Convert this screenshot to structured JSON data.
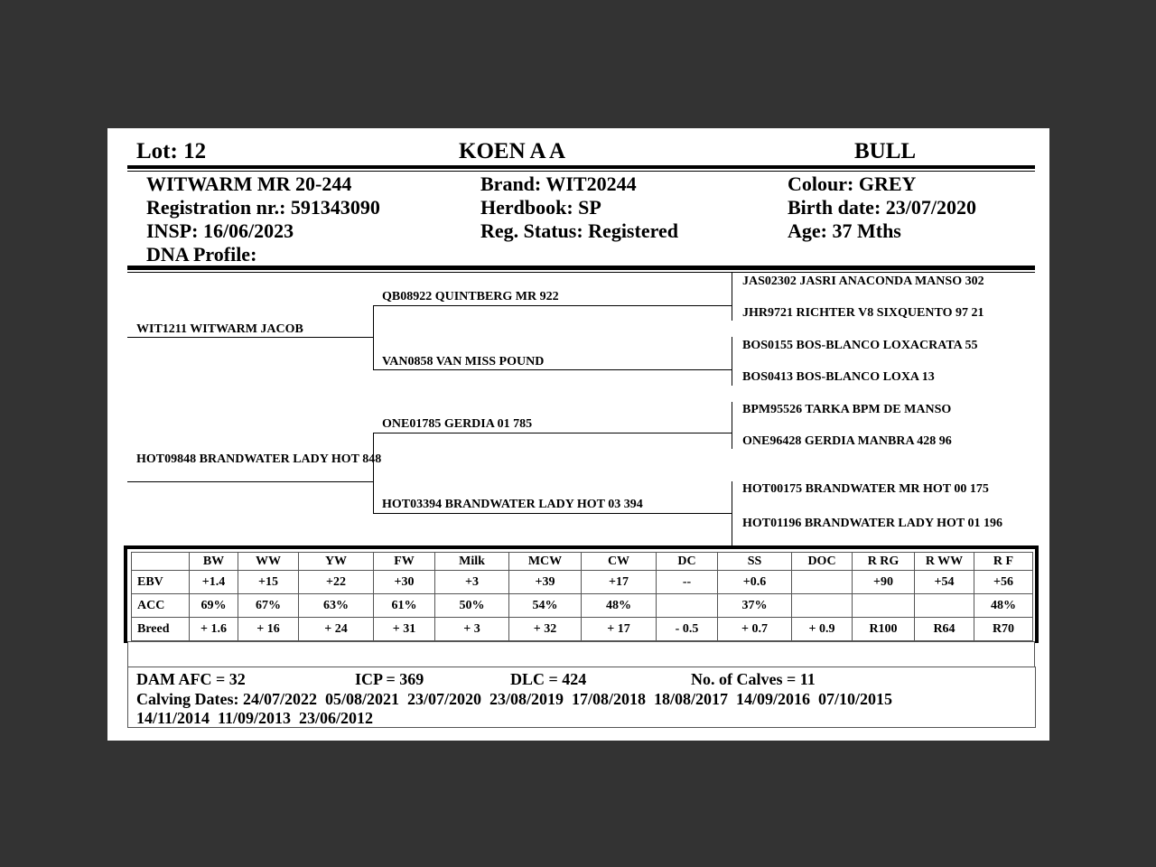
{
  "header": {
    "lot": "Lot:  12",
    "name": "KOEN A A",
    "sex": "BULL"
  },
  "info": {
    "col1": [
      "WITWARM MR 20-244",
      "Registration nr.: 591343090",
      "INSP: 16/06/2023",
      "DNA Profile:"
    ],
    "col2": [
      "Brand:  WIT20244",
      "Herdbook: SP",
      "Reg. Status: Registered"
    ],
    "col3": [
      "Colour:  GREY",
      "Birth date:  23/07/2020",
      "Age: 37 Mths"
    ]
  },
  "pedigree": {
    "sire": "WIT1211 WITWARM JACOB",
    "dam": "HOT09848 BRANDWATER LADY HOT 848",
    "ss": "QB08922 QUINTBERG MR 922",
    "sd": "VAN0858 VAN MISS POUND",
    "ds": "ONE01785 GERDIA 01 785",
    "dd": "HOT03394 BRANDWATER LADY HOT 03 394",
    "gg": [
      "JAS02302 JASRI ANACONDA MANSO 302",
      "JHR9721 RICHTER V8 SIXQUENTO 97 21",
      "BOS0155 BOS-BLANCO LOXACRATA 55",
      "BOS0413 BOS-BLANCO LOXA 13",
      "BPM95526 TARKA BPM DE MANSO",
      "ONE96428 GERDIA MANBRA 428 96",
      "HOT00175 BRANDWATER MR HOT 00 175",
      "HOT01196 BRANDWATER LADY HOT 01 196"
    ]
  },
  "ebv_table": {
    "columns": [
      "",
      "BW",
      "WW",
      "YW",
      "FW",
      "Milk",
      "MCW",
      "CW",
      "DC",
      "SS",
      "DOC",
      "R RG",
      "R WW",
      "R F"
    ],
    "rows": [
      [
        "EBV",
        "+1.4",
        "+15",
        "+22",
        "+30",
        "+3",
        "+39",
        "+17",
        "--",
        "+0.6",
        "",
        "+90",
        "+54",
        "+56"
      ],
      [
        "ACC",
        "69%",
        "67%",
        "63%",
        "61%",
        "50%",
        "54%",
        "48%",
        "",
        "37%",
        "",
        "",
        "",
        "48%"
      ],
      [
        "Breed",
        "+ 1.6",
        "+ 16",
        "+ 24",
        "+ 31",
        "+ 3",
        "+ 32",
        "+ 17",
        "- 0.5",
        "+ 0.7",
        "+ 0.9",
        "R100",
        "R64",
        "R70"
      ]
    ]
  },
  "footer": {
    "afc": "DAM AFC = 32",
    "icp": "ICP = 369",
    "dlc": "DLC = 424",
    "calves": "No. of Calves = 11",
    "calving": "Calving Dates: 24/07/2022  05/08/2021  23/07/2020  23/08/2019  17/08/2018  18/08/2017  14/09/2016  07/10/2015",
    "calving2": "14/11/2014  11/09/2013  23/06/2012"
  }
}
